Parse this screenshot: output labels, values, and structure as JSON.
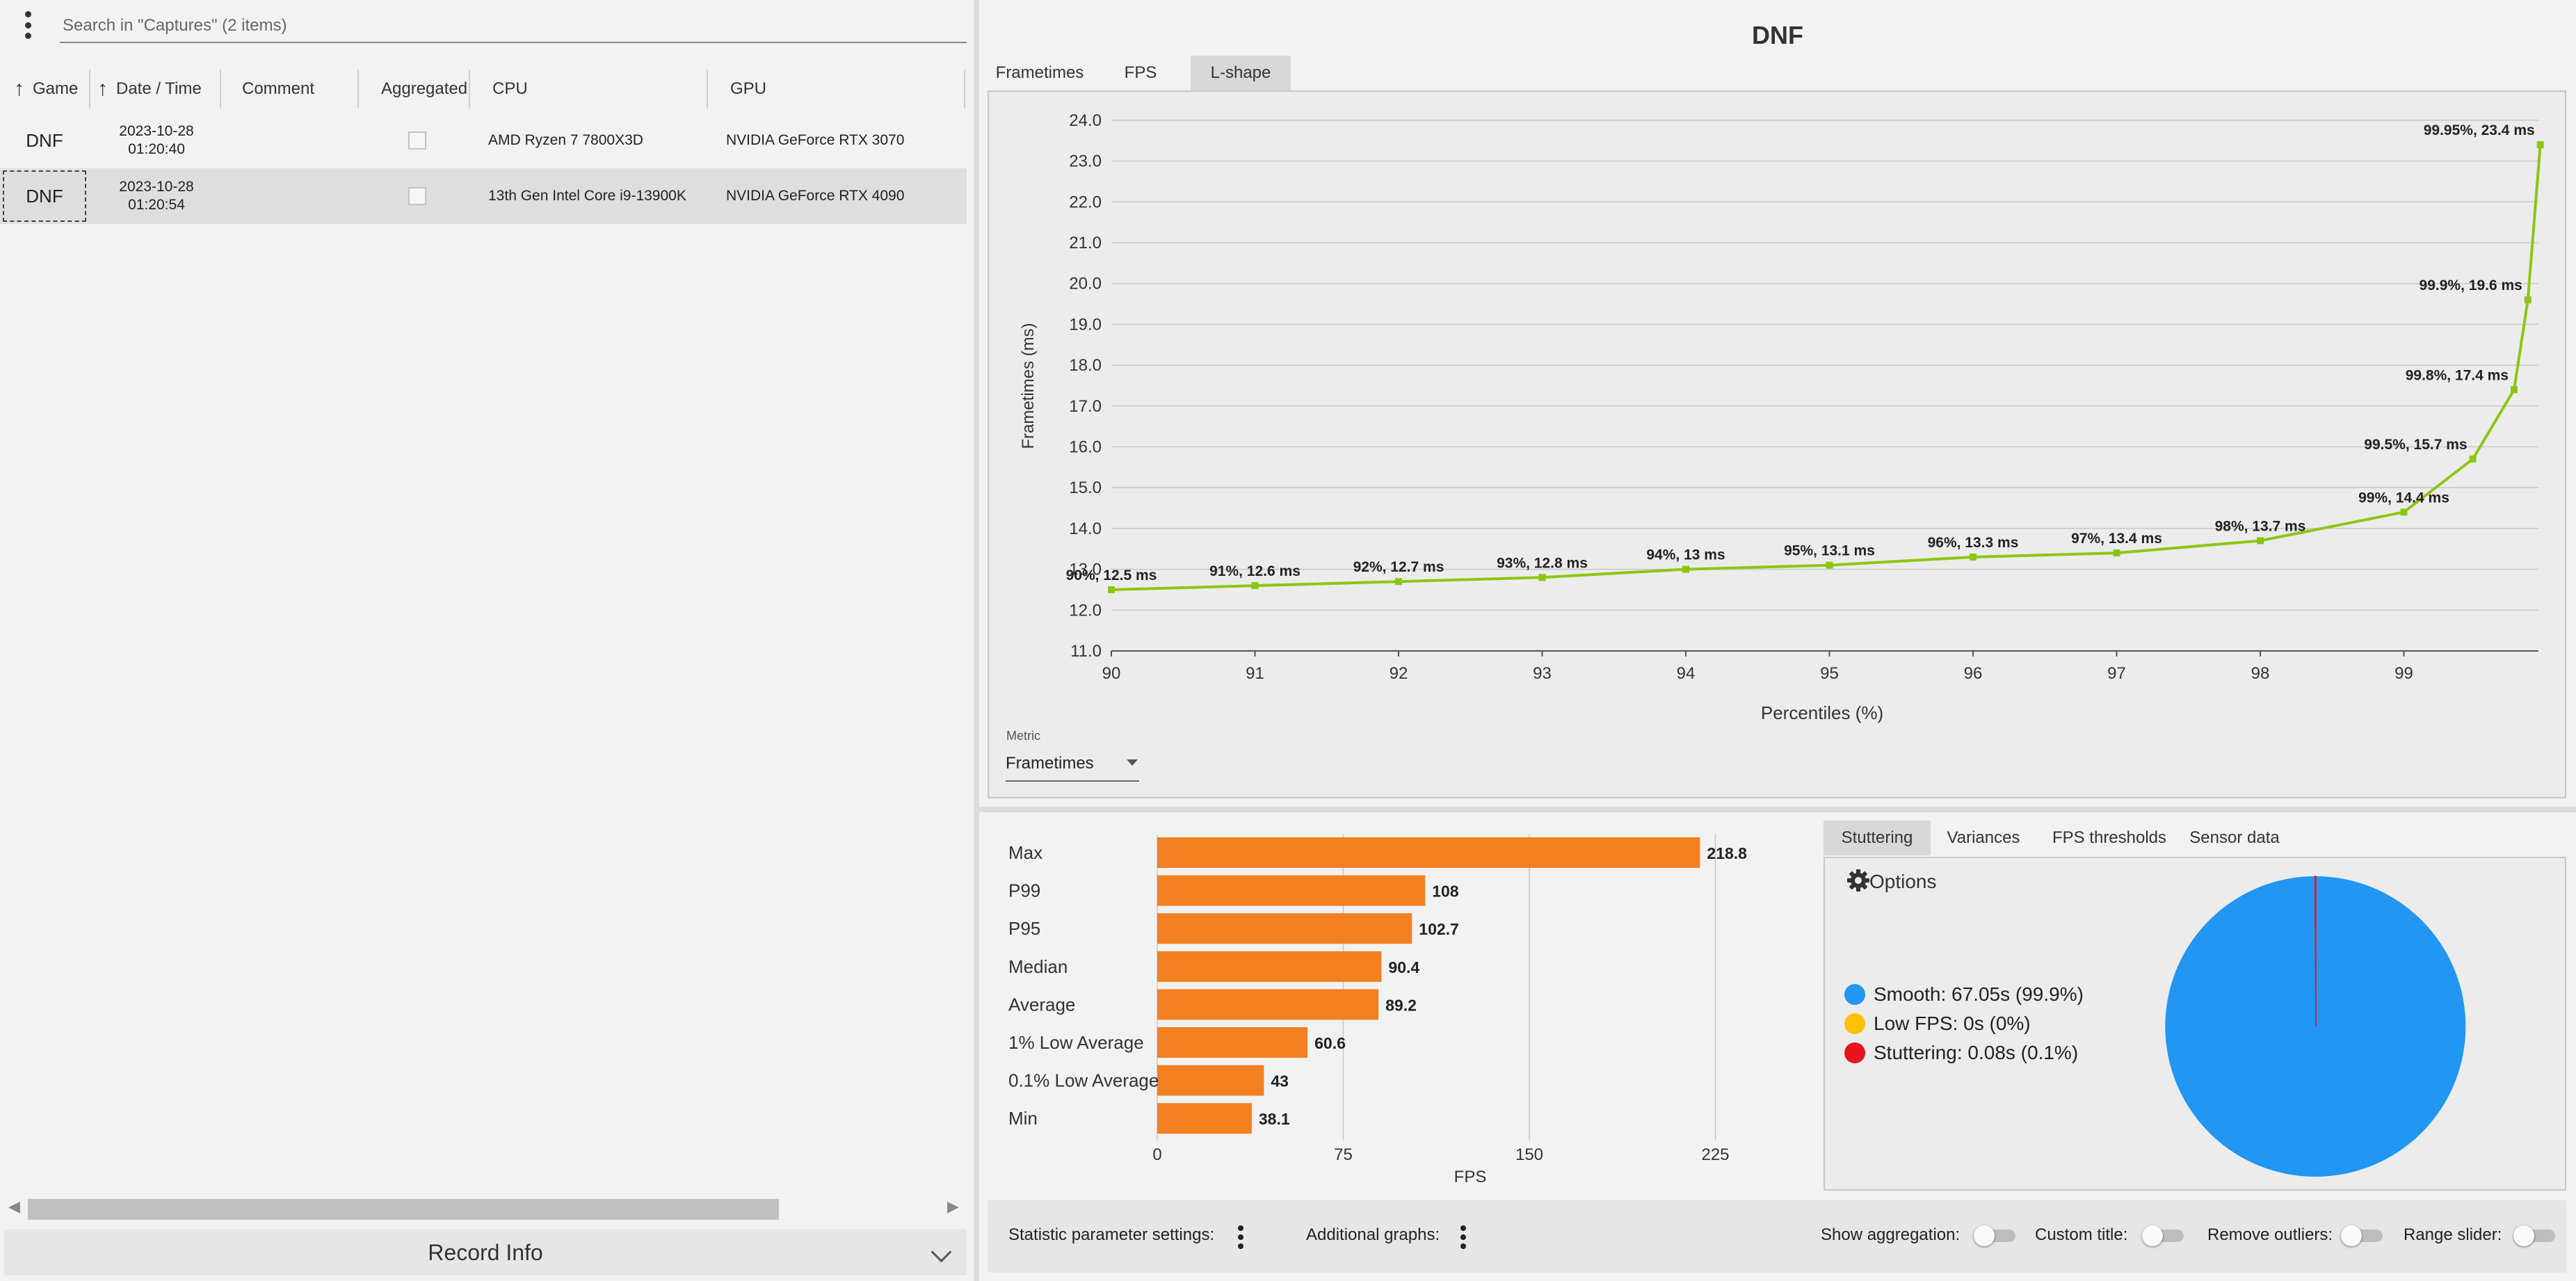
{
  "left_panel": {
    "search_placeholder": "Search in \"Captures\" (2 items)",
    "columns": {
      "game": "Game",
      "datetime": "Date / Time",
      "comment": "Comment",
      "aggregated": "Aggregated",
      "cpu": "CPU",
      "gpu": "GPU"
    },
    "rows": [
      {
        "game": "DNF",
        "date": "2023-10-28",
        "time": "01:20:40",
        "comment": "",
        "aggregated": false,
        "cpu": "AMD Ryzen 7 7800X3D",
        "gpu": "NVIDIA GeForce RTX 3070"
      },
      {
        "game": "DNF",
        "date": "2023-10-28",
        "time": "01:20:54",
        "comment": "",
        "aggregated": false,
        "cpu": "13th Gen Intel Core i9-13900K",
        "gpu": "NVIDIA GeForce RTX 4090",
        "selected": true
      }
    ],
    "record_info": "Record Info"
  },
  "chart_panel": {
    "title": "DNF",
    "tabs": [
      "Frametimes",
      "FPS",
      "L-shape"
    ],
    "active_tab": "L-shape",
    "metric_label": "Metric",
    "metric_value": "Frametimes"
  },
  "chart_data": [
    {
      "type": "line",
      "title": "DNF",
      "xlabel": "Percentiles (%)",
      "ylabel": "Frametimes (ms)",
      "ylim": [
        11.0,
        24.0
      ],
      "y_ticks": [
        "11.0",
        "12.0",
        "13.0",
        "14.0",
        "15.0",
        "16.0",
        "17.0",
        "18.0",
        "19.0",
        "20.0",
        "21.0",
        "22.0",
        "23.0",
        "24.0"
      ],
      "x_ticks": [
        "90",
        "91",
        "92",
        "93",
        "94",
        "95",
        "96",
        "97",
        "98",
        "99"
      ],
      "grid": "horizontal",
      "line_color": "#8cc613",
      "points": [
        {
          "x": 90,
          "y": 12.5,
          "label": "90%, 12.5 ms"
        },
        {
          "x": 91,
          "y": 12.6,
          "label": "91%, 12.6 ms"
        },
        {
          "x": 92,
          "y": 12.7,
          "label": "92%, 12.7 ms"
        },
        {
          "x": 93,
          "y": 12.8,
          "label": "93%, 12.8 ms"
        },
        {
          "x": 94,
          "y": 13.0,
          "label": "94%, 13 ms"
        },
        {
          "x": 95,
          "y": 13.1,
          "label": "95%, 13.1 ms"
        },
        {
          "x": 96,
          "y": 13.3,
          "label": "96%, 13.3 ms"
        },
        {
          "x": 97,
          "y": 13.4,
          "label": "97%, 13.4 ms"
        },
        {
          "x": 98,
          "y": 13.7,
          "label": "98%, 13.7 ms"
        },
        {
          "x": 99,
          "y": 14.4,
          "label": "99%, 14.4 ms"
        },
        {
          "x": 99.5,
          "y": 15.7,
          "label": "99.5%, 15.7 ms"
        },
        {
          "x": 99.8,
          "y": 17.4,
          "label": "99.8%, 17.4 ms"
        },
        {
          "x": 99.9,
          "y": 19.6,
          "label": "99.9%, 19.6 ms"
        },
        {
          "x": 99.95,
          "y": 23.4,
          "label": "99.95%, 23.4 ms"
        }
      ]
    },
    {
      "type": "bar",
      "orientation": "horizontal",
      "xlabel": "FPS",
      "xlim": [
        0,
        225
      ],
      "x_ticks": [
        "0",
        "75",
        "150",
        "225"
      ],
      "bar_color": "#f28020",
      "categories": [
        "Max",
        "P99",
        "P95",
        "Median",
        "Average",
        "1% Low Average",
        "0.1% Low Average",
        "Min"
      ],
      "values": [
        218.8,
        108,
        102.7,
        90.4,
        89.2,
        60.6,
        43,
        38.1
      ],
      "value_labels": [
        "218.8",
        "108",
        "102.7",
        "90.4",
        "89.2",
        "60.6",
        "43",
        "38.1"
      ]
    },
    {
      "type": "pie",
      "slices": [
        {
          "name": "Smooth",
          "value": 99.9,
          "color": "#2196f3",
          "legend": "Smooth:  67.05s (99.9%)"
        },
        {
          "name": "Low FPS",
          "value": 0,
          "color": "#ffc107",
          "legend": "Low FPS:  0s (0%)"
        },
        {
          "name": "Stuttering",
          "value": 0.1,
          "color": "#e8141c",
          "legend": "Stuttering:  0.08s (0.1%)"
        }
      ]
    }
  ],
  "analysis_panel": {
    "tabs": [
      "Stuttering",
      "Variances",
      "FPS thresholds",
      "Sensor data"
    ],
    "active_tab": "Stuttering",
    "options_label": "Options"
  },
  "footer": {
    "statistic_settings": "Statistic parameter settings:",
    "additional_graphs": "Additional graphs:",
    "show_aggregation": "Show aggregation:",
    "custom_title": "Custom title:",
    "remove_outliers": "Remove outliers:",
    "range_slider": "Range slider:"
  }
}
